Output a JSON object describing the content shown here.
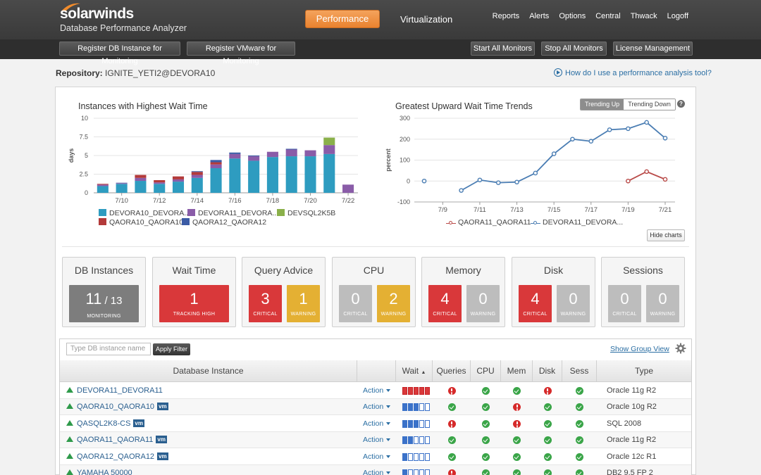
{
  "header": {
    "brand": "solarwinds",
    "product": "Database Performance Analyzer",
    "tabs": [
      {
        "label": "Performance",
        "active": true
      },
      {
        "label": "Virtualization",
        "active": false
      }
    ],
    "nav": [
      "Reports",
      "Alerts",
      "Options",
      "Central",
      "Thwack",
      "Logoff"
    ]
  },
  "toolbar": {
    "register_db": "Register DB Instance for Monitoring",
    "register_vmware": "Register VMware for Monitoring",
    "start_all": "Start All Monitors",
    "stop_all": "Stop All Monitors",
    "license": "License Management"
  },
  "repository": {
    "label": "Repository:",
    "value": "IGNITE_YETI2@DEVORA10"
  },
  "help_link": "How do I use a performance analysis tool?",
  "chart_data": [
    {
      "type": "bar",
      "title": "Instances with Highest Wait Time",
      "ylabel": "days",
      "ylim": [
        0,
        10
      ],
      "yticks": [
        "0",
        "2.5",
        "5",
        "7.5",
        "10"
      ],
      "categories": [
        "7/9",
        "7/10",
        "7/11",
        "7/12",
        "7/13",
        "7/14",
        "7/15",
        "7/16",
        "7/17",
        "7/18",
        "7/19",
        "7/20",
        "7/21",
        "7/22"
      ],
      "xtick_labels": [
        "7/10",
        "7/12",
        "7/14",
        "7/16",
        "7/18",
        "7/20",
        "7/22"
      ],
      "stacked": true,
      "legend_position": "bottom",
      "series": [
        {
          "name": "DEVORA10_DEVORA...",
          "color": "#2e9cc0",
          "values": [
            0.9,
            1.2,
            1.6,
            1.2,
            1.5,
            2.0,
            3.3,
            4.6,
            4.3,
            4.8,
            4.9,
            4.9,
            5.2,
            0
          ]
        },
        {
          "name": "DEVORA11_DEVORA...",
          "color": "#8a5ca8",
          "values": [
            0.2,
            0.1,
            0.4,
            0.2,
            0.3,
            0.4,
            0.5,
            0.6,
            0.6,
            0.7,
            0.9,
            0.8,
            1.2,
            1.1
          ]
        },
        {
          "name": "DEVSQL2K5B",
          "color": "#8ab04a",
          "values": [
            0,
            0,
            0,
            0,
            0,
            0,
            0,
            0,
            0,
            0,
            0,
            0,
            1.0,
            0
          ]
        },
        {
          "name": "QAORA10_QAORA10",
          "color": "#b33a3a",
          "values": [
            0.1,
            0,
            0.4,
            0.3,
            0.4,
            0.4,
            0.3,
            0,
            0,
            0,
            0,
            0,
            0,
            0
          ]
        },
        {
          "name": "QAORA12_QAORA12",
          "color": "#3b5ba5",
          "values": [
            0,
            0.05,
            0,
            0,
            0,
            0.1,
            0.3,
            0.2,
            0.1,
            0,
            0.1,
            0,
            0,
            0
          ]
        }
      ]
    },
    {
      "type": "line",
      "title": "Greatest Upward Wait Time Trends",
      "ylabel": "percent",
      "ylim": [
        -100,
        300
      ],
      "yticks": [
        "-100",
        "0",
        "100",
        "200",
        "300"
      ],
      "x": [
        "7/8",
        "7/9",
        "7/10",
        "7/11",
        "7/12",
        "7/13",
        "7/14",
        "7/15",
        "7/16",
        "7/17",
        "7/18",
        "7/19",
        "7/20",
        "7/21"
      ],
      "xtick_labels": [
        "7/9",
        "7/11",
        "7/13",
        "7/15",
        "7/17",
        "7/19",
        "7/21"
      ],
      "legend_position": "bottom",
      "series": [
        {
          "name": "QAORA11_QAORA11",
          "color": "#b94a48",
          "values": [
            null,
            null,
            null,
            null,
            null,
            null,
            null,
            null,
            null,
            null,
            null,
            0,
            45,
            8
          ]
        },
        {
          "name": "DEVORA11_DEVORA...",
          "color": "#4a7db3",
          "values": [
            0,
            null,
            -45,
            5,
            -8,
            -5,
            38,
            130,
            200,
            190,
            245,
            250,
            280,
            205
          ]
        }
      ]
    }
  ],
  "trend_toggle": {
    "up": "Trending Up",
    "down": "Trending Down"
  },
  "hide_charts": "Hide charts",
  "cards": [
    {
      "title": "DB Instances",
      "tiles": [
        {
          "value": "11",
          "of": "/ 13",
          "label": "MONITORING",
          "tone": "dark"
        }
      ]
    },
    {
      "title": "Wait Time",
      "tiles": [
        {
          "value": "1",
          "label": "TRACKING HIGH",
          "tone": "red"
        }
      ]
    },
    {
      "title": "Query Advice",
      "tiles": [
        {
          "value": "3",
          "label": "CRITICAL",
          "tone": "red"
        },
        {
          "value": "1",
          "label": "WARNING",
          "tone": "yel"
        }
      ]
    },
    {
      "title": "CPU",
      "tiles": [
        {
          "value": "0",
          "label": "CRITICAL",
          "tone": "gray"
        },
        {
          "value": "2",
          "label": "WARNING",
          "tone": "yel"
        }
      ]
    },
    {
      "title": "Memory",
      "tiles": [
        {
          "value": "4",
          "label": "CRITICAL",
          "tone": "red"
        },
        {
          "value": "0",
          "label": "WARNING",
          "tone": "gray"
        }
      ]
    },
    {
      "title": "Disk",
      "tiles": [
        {
          "value": "4",
          "label": "CRITICAL",
          "tone": "red"
        },
        {
          "value": "0",
          "label": "WARNING",
          "tone": "gray"
        }
      ]
    },
    {
      "title": "Sessions",
      "tiles": [
        {
          "value": "0",
          "label": "CRITICAL",
          "tone": "gray"
        },
        {
          "value": "0",
          "label": "WARNING",
          "tone": "gray"
        }
      ]
    }
  ],
  "grid": {
    "filter_placeholder": "Type DB instance name",
    "apply_filter": "Apply Filter",
    "show_group_view": "Show Group View",
    "columns": [
      "Database Instance",
      "",
      "Wait",
      "Queries",
      "CPU",
      "Mem",
      "Disk",
      "Sess",
      "Type"
    ],
    "wait_sort_mark": "▲",
    "rows": [
      {
        "name": "DEVORA11_DEVORA11",
        "vm": false,
        "action": "Action",
        "wait_filled": 5,
        "wait_red": true,
        "queries": "bad",
        "cpu": "ok",
        "mem": "ok",
        "disk": "bad",
        "sess": "ok",
        "type": "Oracle 11g R2"
      },
      {
        "name": "QAORA10_QAORA10",
        "vm": true,
        "action": "Action",
        "wait_filled": 3,
        "wait_red": false,
        "queries": "ok",
        "cpu": "ok",
        "mem": "bad",
        "disk": "ok",
        "sess": "ok",
        "type": "Oracle 10g R2"
      },
      {
        "name": "QASQL2K8-CS",
        "vm": true,
        "action": "Action",
        "wait_filled": 3,
        "wait_red": false,
        "queries": "bad",
        "cpu": "ok",
        "mem": "bad",
        "disk": "ok",
        "sess": "ok",
        "type": "SQL 2008"
      },
      {
        "name": "QAORA11_QAORA11",
        "vm": true,
        "action": "Action",
        "wait_filled": 2,
        "wait_red": false,
        "queries": "ok",
        "cpu": "ok",
        "mem": "ok",
        "disk": "ok",
        "sess": "ok",
        "type": "Oracle 11g R2"
      },
      {
        "name": "QAORA12_QAORA12",
        "vm": true,
        "action": "Action",
        "wait_filled": 1,
        "wait_red": false,
        "queries": "ok",
        "cpu": "ok",
        "mem": "ok",
        "disk": "ok",
        "sess": "ok",
        "type": "Oracle 12c R1"
      },
      {
        "name": "YAMAHA 50000",
        "vm": false,
        "action": "Action",
        "wait_filled": 1,
        "wait_red": false,
        "queries": "bad",
        "cpu": "ok",
        "mem": "ok",
        "disk": "ok",
        "sess": "ok",
        "type": "DB2 9.5 FP 2"
      }
    ],
    "vm_badge": "vm"
  }
}
